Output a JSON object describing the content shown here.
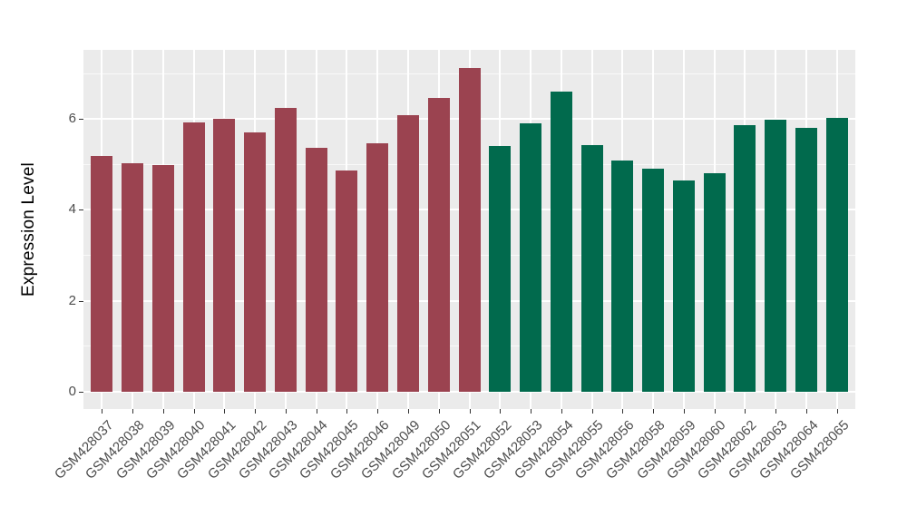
{
  "chart_data": {
    "type": "bar",
    "title": "",
    "xlabel": "",
    "ylabel": "Expression Level",
    "ylim": [
      0,
      7.52
    ],
    "yticks": [
      0,
      2,
      4,
      6
    ],
    "minor_gridlines": [
      1,
      3,
      5,
      7
    ],
    "grid": true,
    "legend_position": "none",
    "panel_background": "#EBEBEB",
    "gridline_color": "#FFFFFF",
    "tick_text_color": "#4D4D4D",
    "tick_mark_color": "#333333",
    "axis_title_color": "#000000",
    "group_colors": [
      "#9B4350",
      "#016A4D"
    ],
    "categories": [
      "GSM428037",
      "GSM428038",
      "GSM428039",
      "GSM428040",
      "GSM428041",
      "GSM428042",
      "GSM428043",
      "GSM428044",
      "GSM428045",
      "GSM428046",
      "GSM428049",
      "GSM428050",
      "GSM428051",
      "GSM428052",
      "GSM428053",
      "GSM428054",
      "GSM428055",
      "GSM428056",
      "GSM428058",
      "GSM428059",
      "GSM428060",
      "GSM428062",
      "GSM428063",
      "GSM428064",
      "GSM428065"
    ],
    "values": [
      5.18,
      5.03,
      4.99,
      5.92,
      6.01,
      5.7,
      6.25,
      5.37,
      4.86,
      5.46,
      6.09,
      6.46,
      7.13,
      5.41,
      5.91,
      6.61,
      5.43,
      5.09,
      4.9,
      4.65,
      4.81,
      5.86,
      5.99,
      5.8,
      6.03
    ],
    "bar_group_index": [
      0,
      0,
      0,
      0,
      0,
      0,
      0,
      0,
      0,
      0,
      0,
      0,
      0,
      1,
      1,
      1,
      1,
      1,
      1,
      1,
      1,
      1,
      1,
      1,
      1
    ]
  }
}
